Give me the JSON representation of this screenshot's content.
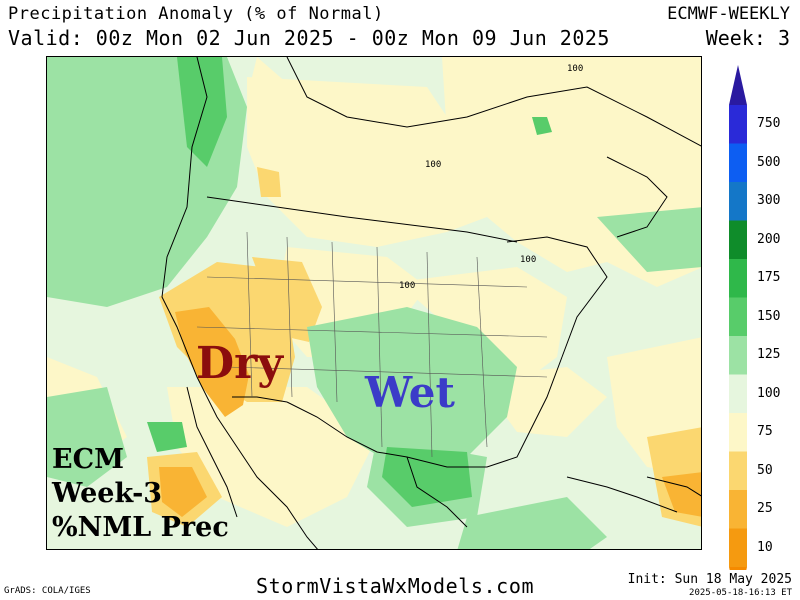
{
  "header": {
    "title": "Precipitation Anomaly (% of Normal)",
    "valid": "Valid: 00z Mon 02 Jun 2025 - 00z Mon 09 Jun 2025",
    "model": "ECMWF-WEEKLY",
    "week": "Week: 3"
  },
  "map": {
    "labels": {
      "dry": "Dry",
      "wet": "Wet"
    },
    "model_label": [
      "ECM",
      "Week-3",
      "%NML Prec"
    ],
    "contour_labels": [
      "100",
      "100",
      "100",
      "100"
    ]
  },
  "legend": {
    "ticks": [
      "750",
      "500",
      "300",
      "200",
      "175",
      "150",
      "125",
      "100",
      "75",
      "50",
      "25",
      "10"
    ],
    "colors": {
      "750": "#2a2ad8",
      "500": "#0d5ef2",
      "300": "#1477c8",
      "200": "#0f8c2a",
      "175": "#2fb84a",
      "150": "#58cc6a",
      "125": "#9ce2a4",
      "100": "#e6f6de",
      "75": "#fdf7c8",
      "50": "#fbd770",
      "25": "#f9b434",
      "10": "#f59a10"
    }
  },
  "footer": {
    "grads": "GrADS: COLA/IGES",
    "site": "StormVistaWxModels.com",
    "init": "Init: Sun 18 May 2025",
    "stamp": "2025-05-18-16:13 ET"
  }
}
